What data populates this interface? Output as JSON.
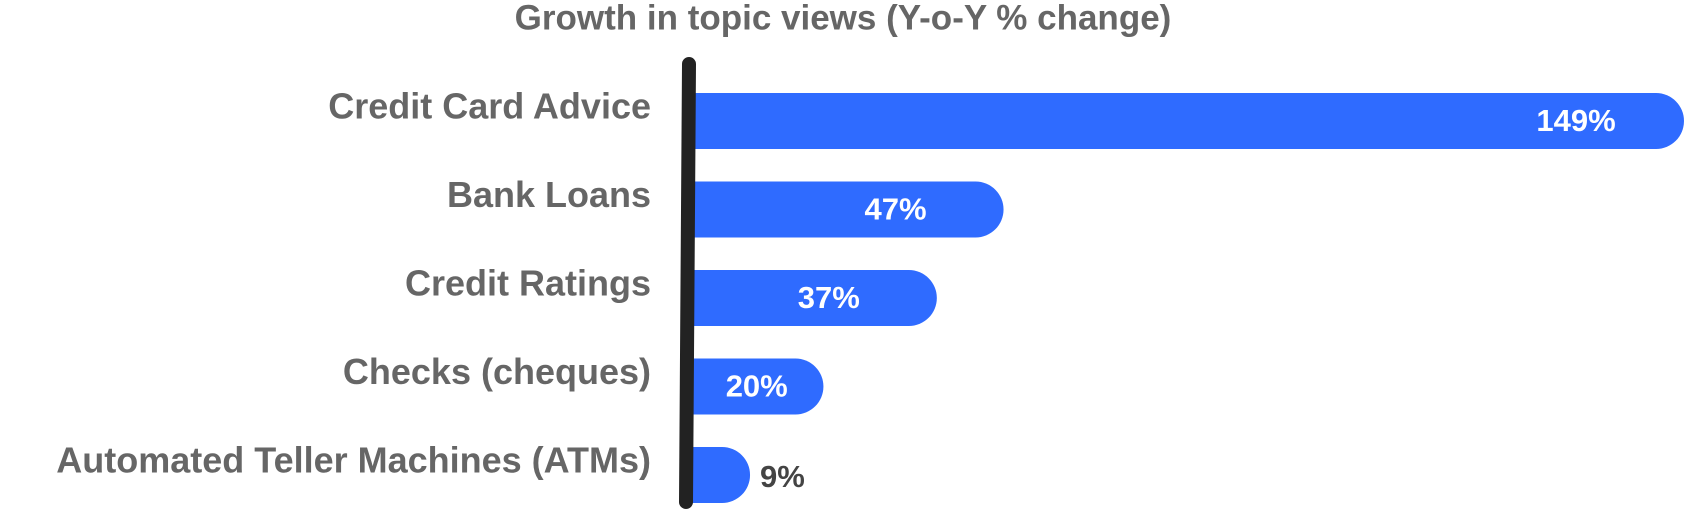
{
  "chart_data": {
    "type": "bar",
    "orientation": "horizontal",
    "title": "Growth in topic views (Y-o-Y % change)",
    "categories": [
      "Credit Card Advice",
      "Bank Loans",
      "Credit Ratings",
      "Checks (cheques)",
      "Automated Teller Machines (ATMs)"
    ],
    "values": [
      149,
      47,
      37,
      20,
      9
    ],
    "value_labels": [
      "149%",
      "47%",
      "37%",
      "20%",
      "9%"
    ],
    "color": "#2f6bff"
  }
}
